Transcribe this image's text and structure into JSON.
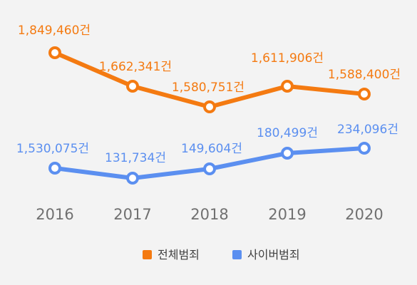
{
  "chart_data": {
    "type": "line",
    "title": "",
    "xlabel": "",
    "ylabel": "",
    "categories": [
      "2016",
      "2017",
      "2018",
      "2019",
      "2020"
    ],
    "series": [
      {
        "name": "전체범죄",
        "color": "#f47a11",
        "values": [
          1849460,
          1662341,
          1580751,
          1611906,
          1588400
        ],
        "labels": [
          "1,849,460건",
          "1,662,341건",
          "1,580,751건",
          "1,611,906건",
          "1,588,400건"
        ]
      },
      {
        "name": "사이버범죄",
        "color": "#5b8ff0",
        "values": [
          1530075,
          131734,
          149604,
          180499,
          234096
        ],
        "labels": [
          "1,530,075건",
          "131,734건",
          "149,604건",
          "180,499건",
          "234,096건"
        ]
      }
    ],
    "legend": "bottom-center",
    "grid": false
  }
}
